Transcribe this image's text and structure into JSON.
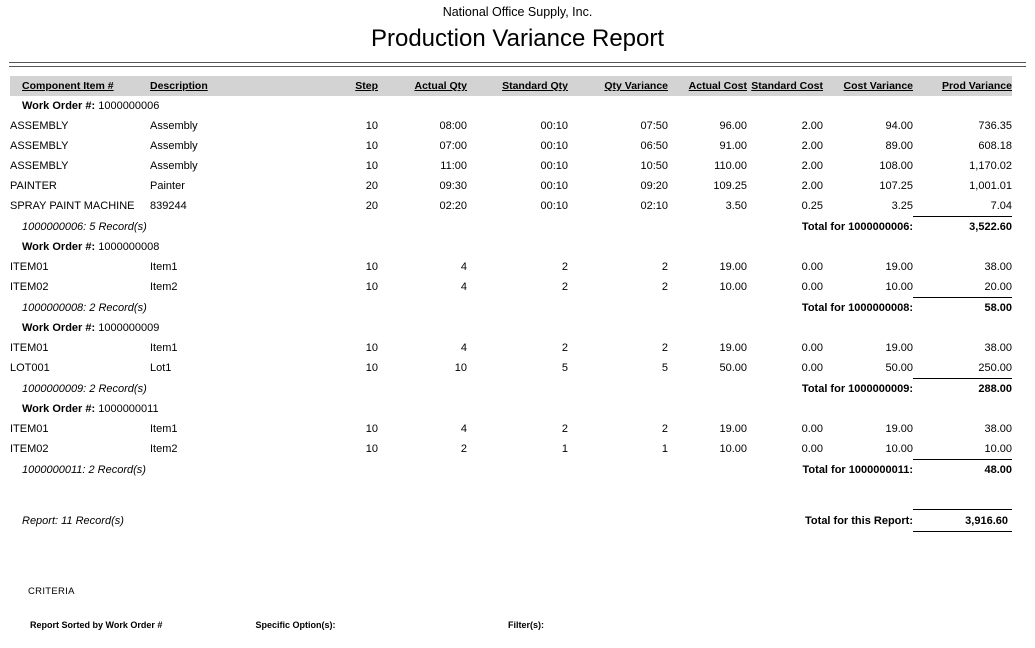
{
  "header": {
    "company": "National Office Supply, Inc.",
    "title": "Production Variance Report"
  },
  "columns": [
    "Component Item #",
    "Description",
    "Step",
    "Actual Qty",
    "Standard Qty",
    "Qty Variance",
    "Actual Cost",
    "Standard Cost",
    "Cost Variance",
    "Prod Variance"
  ],
  "work_order_prefix": "Work Order #:",
  "groups": [
    {
      "work_order": "1000000006",
      "rows": [
        [
          "ASSEMBLY",
          "Assembly",
          "10",
          "08:00",
          "00:10",
          "07:50",
          "96.00",
          "2.00",
          "94.00",
          "736.35"
        ],
        [
          "ASSEMBLY",
          "Assembly",
          "10",
          "07:00",
          "00:10",
          "06:50",
          "91.00",
          "2.00",
          "89.00",
          "608.18"
        ],
        [
          "ASSEMBLY",
          "Assembly",
          "10",
          "11:00",
          "00:10",
          "10:50",
          "110.00",
          "2.00",
          "108.00",
          "1,170.02"
        ],
        [
          "PAINTER",
          "Painter",
          "20",
          "09:30",
          "00:10",
          "09:20",
          "109.25",
          "2.00",
          "107.25",
          "1,001.01"
        ],
        [
          "SPRAY PAINT MACHINE",
          "839244",
          "20",
          "02:20",
          "00:10",
          "02:10",
          "3.50",
          "0.25",
          "3.25",
          "7.04"
        ]
      ],
      "footer": "1000000006: 5 Record(s)",
      "total_label": "Total for 1000000006:",
      "total_value": "3,522.60"
    },
    {
      "work_order": "1000000008",
      "rows": [
        [
          "ITEM01",
          "Item1",
          "10",
          "4",
          "2",
          "2",
          "19.00",
          "0.00",
          "19.00",
          "38.00"
        ],
        [
          "ITEM02",
          "Item2",
          "10",
          "4",
          "2",
          "2",
          "10.00",
          "0.00",
          "10.00",
          "20.00"
        ]
      ],
      "footer": "1000000008: 2 Record(s)",
      "total_label": "Total for 1000000008:",
      "total_value": "58.00"
    },
    {
      "work_order": "1000000009",
      "rows": [
        [
          "ITEM01",
          "Item1",
          "10",
          "4",
          "2",
          "2",
          "19.00",
          "0.00",
          "19.00",
          "38.00"
        ],
        [
          "LOT001",
          "Lot1",
          "10",
          "10",
          "5",
          "5",
          "50.00",
          "0.00",
          "50.00",
          "250.00"
        ]
      ],
      "footer": "1000000009: 2 Record(s)",
      "total_label": "Total for 1000000009:",
      "total_value": "288.00"
    },
    {
      "work_order": "1000000011",
      "rows": [
        [
          "ITEM01",
          "Item1",
          "10",
          "4",
          "2",
          "2",
          "19.00",
          "0.00",
          "19.00",
          "38.00"
        ],
        [
          "ITEM02",
          "Item2",
          "10",
          "2",
          "1",
          "1",
          "10.00",
          "0.00",
          "10.00",
          "10.00"
        ]
      ],
      "footer": "1000000011: 2 Record(s)",
      "total_label": "Total for 1000000011:",
      "total_value": "48.00"
    }
  ],
  "report_summary": {
    "records": "Report: 11 Record(s)",
    "total_label": "Total for this Report:",
    "total_value": "3,916.60"
  },
  "criteria": {
    "heading": "CRITERIA",
    "sort": "Report Sorted by Work Order #",
    "options_label": "Specific Option(s):",
    "filters_label": "Filter(s):"
  }
}
